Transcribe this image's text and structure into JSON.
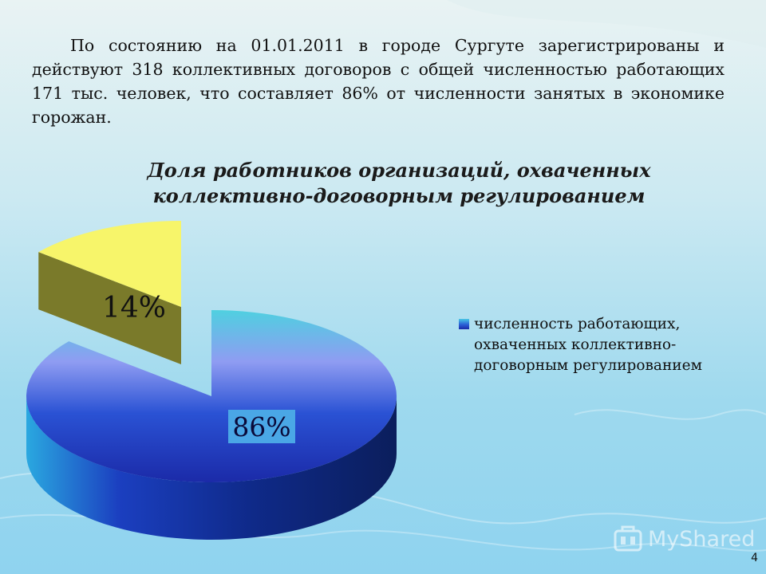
{
  "slide": {
    "intro_text": "По состоянию на 01.01.2011 в городе Сургуте зарегистрированы и действуют 318 коллективных договоров  с общей численностью работающих  171 тыс. человек, что составляет 86%  от численности занятых в экономике горожан.",
    "page_number": "4"
  },
  "chart_data": {
    "type": "pie",
    "title_line1": "Доля работников организаций, охваченных",
    "title_line2": "коллективно-договорным  регулированием",
    "slices": [
      {
        "name": "численность работающих, охваченных коллективно-договорным регулированием",
        "value": 86,
        "label": "86%",
        "color": "#2a52d4"
      },
      {
        "value": 14,
        "label": "14%",
        "color": "#f7f56a"
      }
    ],
    "legend": {
      "position": "right",
      "entries": [
        "численность работающих,",
        "охваченных коллективно-",
        "договорным регулированием"
      ]
    }
  },
  "watermark": {
    "text": "MyShared"
  },
  "colors": {
    "background": "#9ed9ee",
    "main_slice_top": "#4fd0e0",
    "main_slice_bottom": "#1b2aa8",
    "minor_slice": "#f7f56a",
    "minor_slice_side": "#7a7a2a"
  }
}
